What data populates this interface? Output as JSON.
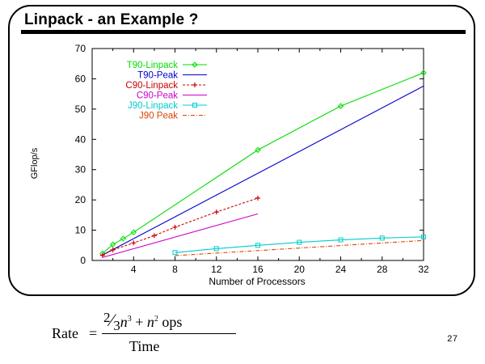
{
  "slide": {
    "title": "Linpack - an Example ?",
    "page_number": "27"
  },
  "formula": {
    "label": "Rate",
    "equals": "=",
    "numerator_frac_num": "2",
    "numerator_frac_den": "3",
    "numerator_term1": "n",
    "numerator_exp1": "3",
    "numerator_plus": " + ",
    "numerator_term2": "n",
    "numerator_exp2": "2",
    "numerator_unit": " ops",
    "denominator": "Time"
  },
  "chart_data": {
    "type": "line",
    "title": "",
    "xlabel": "Number of Processors",
    "ylabel": "GFlop/s",
    "xlim": [
      0,
      32
    ],
    "ylim": [
      0,
      70
    ],
    "xticks": [
      4,
      8,
      12,
      16,
      20,
      24,
      28,
      32
    ],
    "yticks": [
      0,
      10,
      20,
      30,
      40,
      50,
      60,
      70
    ],
    "grid": false,
    "legend_position": "top-left",
    "series": [
      {
        "name": "T90-Linpack",
        "color": "#00dd00",
        "dash": "",
        "marker": "diamond",
        "x": [
          1,
          2,
          3,
          4,
          16,
          24,
          32
        ],
        "y": [
          2.3,
          5.3,
          7.2,
          9.3,
          36.5,
          51,
          62
        ]
      },
      {
        "name": "T90-Peak",
        "color": "#0000cc",
        "dash": "",
        "marker": "none",
        "x": [
          1,
          32
        ],
        "y": [
          1.8,
          57.6
        ]
      },
      {
        "name": "C90-Linpack",
        "color": "#cc0000",
        "dash": "3,2",
        "marker": "plus",
        "x": [
          1,
          2,
          4,
          6,
          8,
          12,
          16
        ],
        "y": [
          1.7,
          3.5,
          5.8,
          8.2,
          11,
          16,
          20.6
        ]
      },
      {
        "name": "C90-Peak",
        "color": "#cc00cc",
        "dash": "",
        "marker": "none",
        "x": [
          1,
          16
        ],
        "y": [
          1,
          15.4
        ]
      },
      {
        "name": "J90-Linpack",
        "color": "#00cccc",
        "dash": "",
        "marker": "square",
        "x": [
          8,
          12,
          16,
          20,
          24,
          28,
          32
        ],
        "y": [
          2.6,
          3.9,
          5,
          6,
          6.8,
          7.4,
          7.8
        ]
      },
      {
        "name": "J90 Peak",
        "color": "#dd4400",
        "dash": "5,2,1,2",
        "marker": "none",
        "x": [
          8,
          32
        ],
        "y": [
          1.6,
          6.6
        ]
      }
    ]
  }
}
